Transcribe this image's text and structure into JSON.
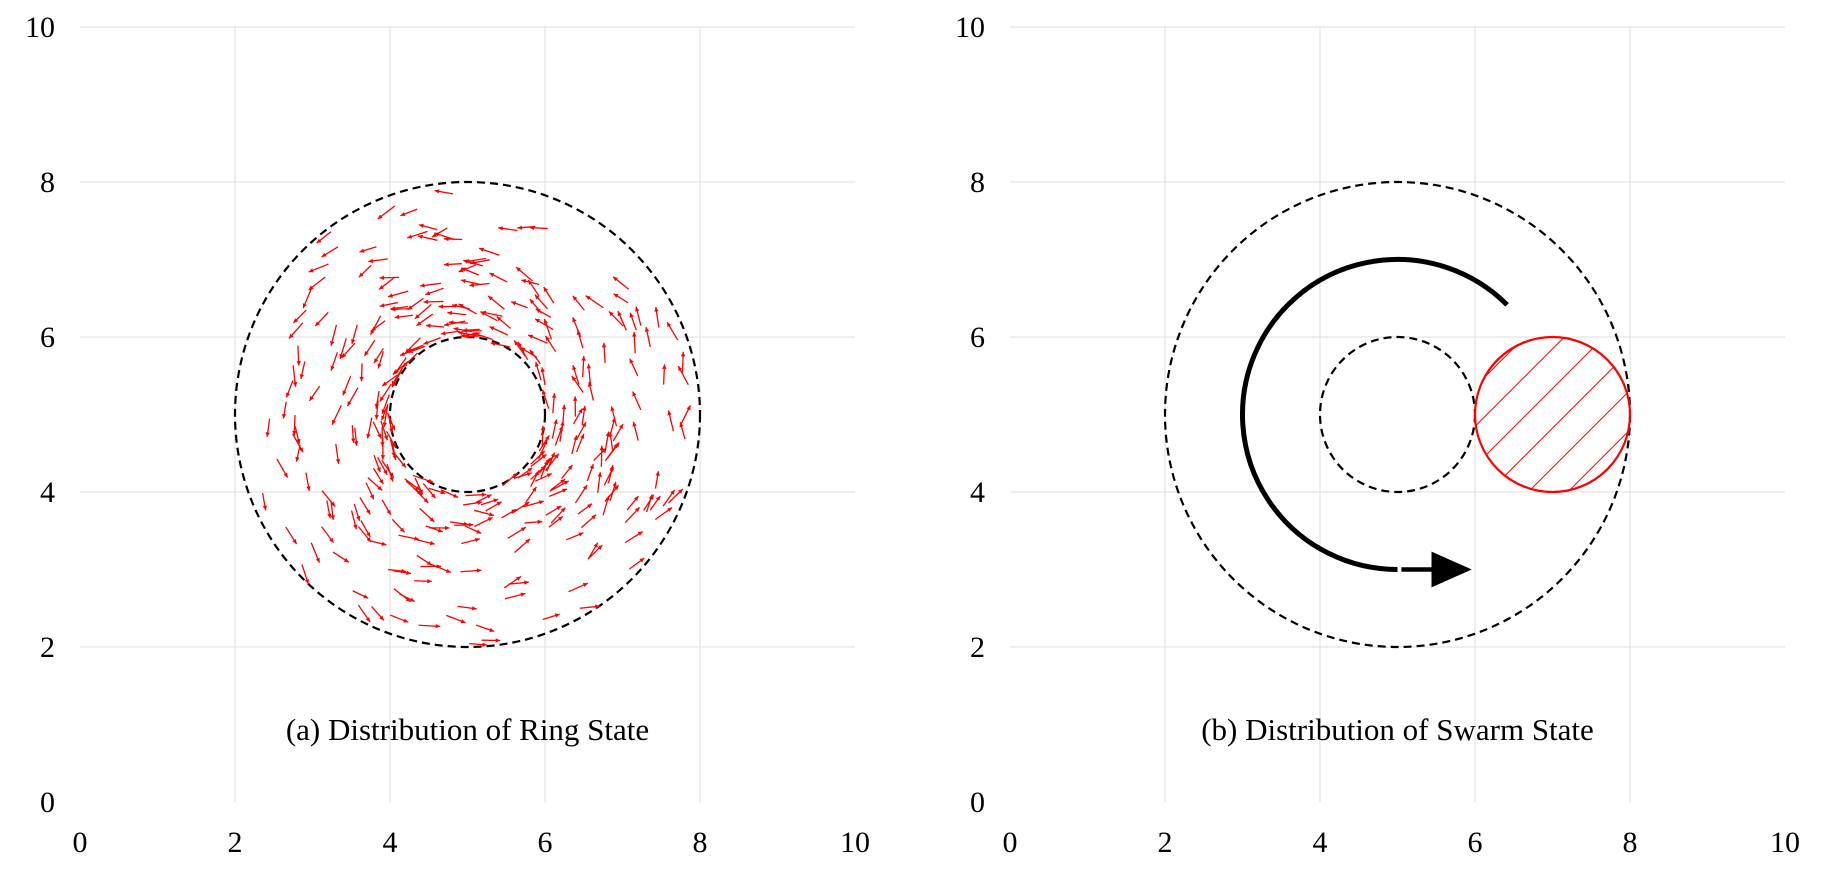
{
  "figure": {
    "colors": {
      "grid": "#dddddd",
      "boundary": "#000000",
      "agents": "#ff0000",
      "trajectory": "#000000"
    }
  },
  "chart_data": [
    {
      "type": "scatter",
      "caption": "(a) Distribution of Ring State",
      "xlim": [
        0,
        10
      ],
      "ylim": [
        0,
        10
      ],
      "xticks": [
        "0",
        "2",
        "4",
        "6",
        "8",
        "10"
      ],
      "yticks": [
        "0",
        "2",
        "4",
        "6",
        "8",
        "10"
      ],
      "grid": true,
      "center": [
        5,
        5
      ],
      "boundaries": [
        {
          "kind": "dashed-circle",
          "radius": 1
        },
        {
          "kind": "dashed-circle",
          "radius": 3
        }
      ],
      "agents": {
        "marker": "arrow",
        "color": "#ff0000",
        "motion": "counter-clockwise",
        "inner_radius": 1,
        "outer_radius": 3,
        "count": 320
      }
    },
    {
      "type": "scatter",
      "caption": "(b) Distribution of Swarm State",
      "xlim": [
        0,
        10
      ],
      "ylim": [
        0,
        10
      ],
      "xticks": [
        "0",
        "2",
        "4",
        "6",
        "8",
        "10"
      ],
      "yticks": [
        "0",
        "2",
        "4",
        "6",
        "8",
        "10"
      ],
      "grid": true,
      "center": [
        5,
        5
      ],
      "boundaries": [
        {
          "kind": "dashed-circle",
          "radius": 1
        },
        {
          "kind": "dashed-circle",
          "radius": 3
        }
      ],
      "swarm": {
        "center": [
          7,
          5
        ],
        "radius": 1,
        "fill": "hatched",
        "color": "#ff0000"
      },
      "trajectory": {
        "kind": "arc",
        "center": [
          5,
          5
        ],
        "radius": 2,
        "start_deg": 45,
        "end_deg": 270,
        "arrow_from": [
          5.05,
          3
        ],
        "arrow_to": [
          5.9,
          3
        ],
        "color": "#000000"
      }
    }
  ]
}
